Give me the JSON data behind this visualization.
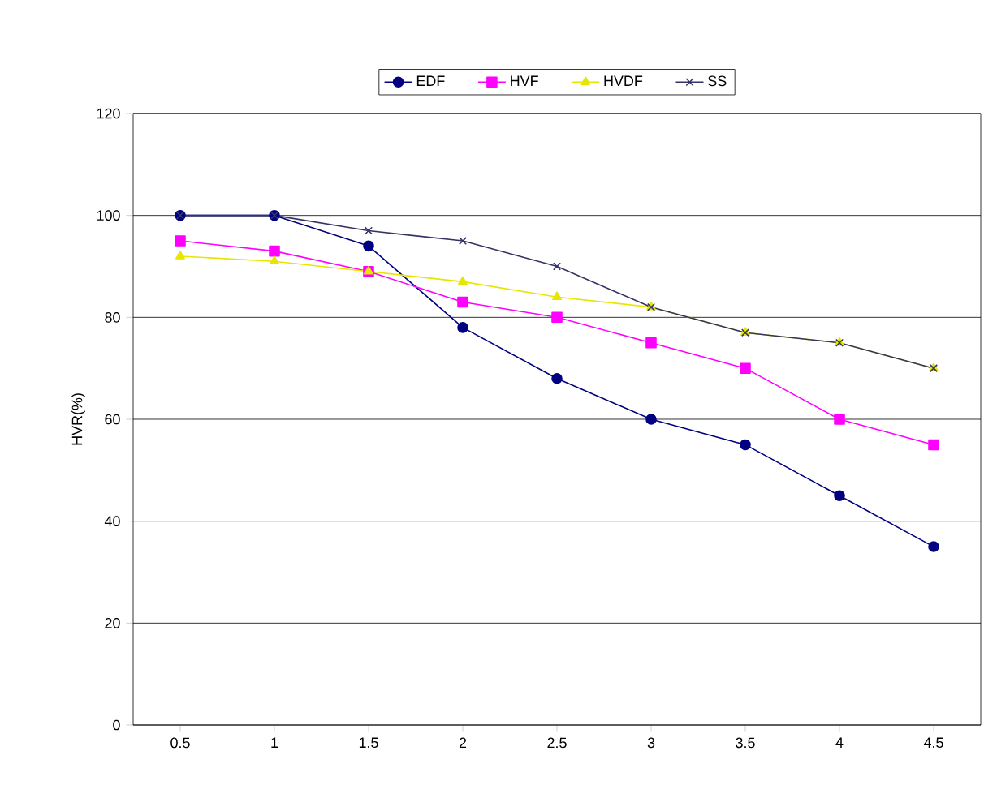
{
  "chart_data": {
    "type": "line",
    "ylabel": "HVR(%)",
    "categories": [
      "0.5",
      "1",
      "1.5",
      "2",
      "2.5",
      "3",
      "3.5",
      "4",
      "4.5"
    ],
    "series": [
      {
        "name": "EDF",
        "color": "#000080",
        "marker": "circle",
        "values": [
          100,
          100,
          94,
          78,
          68,
          60,
          55,
          45,
          35
        ]
      },
      {
        "name": "HVF",
        "color": "#ff00ff",
        "marker": "square",
        "values": [
          95,
          93,
          89,
          83,
          80,
          75,
          70,
          60,
          55
        ]
      },
      {
        "name": "HVDF",
        "color": "#e6e600",
        "marker": "triangle",
        "values": [
          92,
          91,
          89,
          87,
          84,
          82,
          77,
          75,
          70
        ]
      },
      {
        "name": "SS",
        "color": "#333366",
        "marker": "cross",
        "values": [
          100,
          100,
          97,
          95,
          90,
          82,
          77,
          75,
          70
        ]
      }
    ],
    "ylim": [
      0,
      120
    ],
    "yticks": [
      0,
      20,
      40,
      60,
      80,
      100,
      120
    ],
    "grid": "y",
    "legend": "top"
  }
}
